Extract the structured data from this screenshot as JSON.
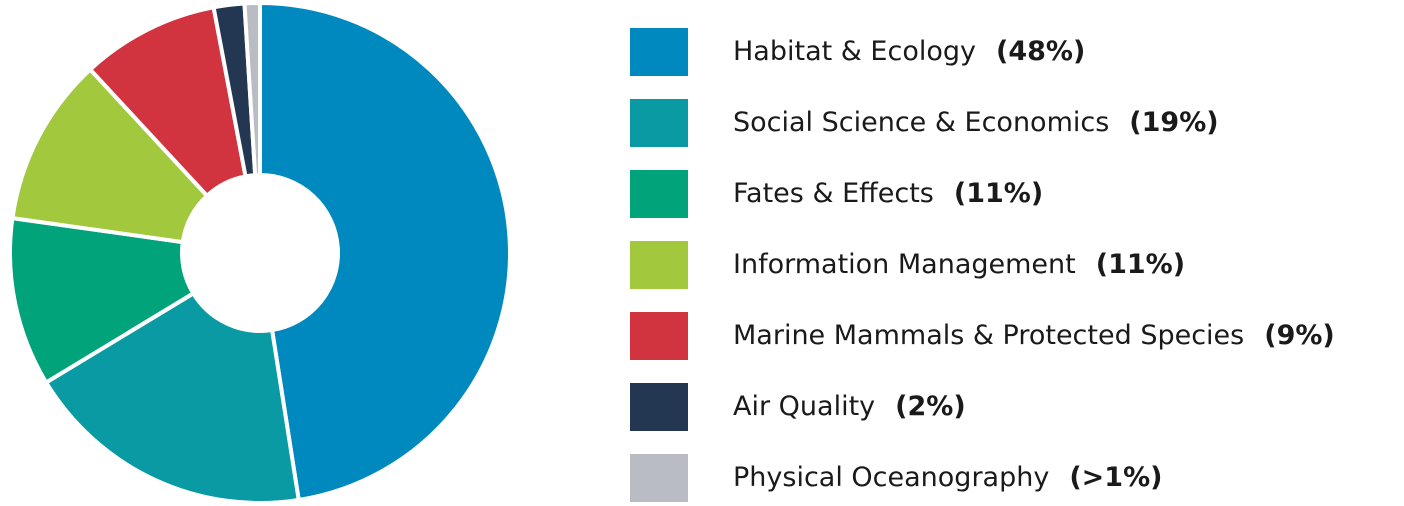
{
  "chart_data": {
    "type": "pie",
    "categories": [
      "Habitat & Ecology",
      "Social Science & Economics",
      "Fates & Effects",
      "Information Management",
      "Marine Mammals & Protected Species",
      "Air Quality",
      "Physical Oceanography"
    ],
    "values": [
      48,
      19,
      11,
      11,
      9,
      2,
      1
    ],
    "value_labels": [
      "(48%)",
      "(19%)",
      "(11%)",
      "(11%)",
      "(9%)",
      "(2%)",
      "(>1%)"
    ],
    "colors": [
      "#0089bf",
      "#0a9aa4",
      "#00a37a",
      "#a2c83e",
      "#d1343e",
      "#243752",
      "#b9bcc2"
    ]
  }
}
